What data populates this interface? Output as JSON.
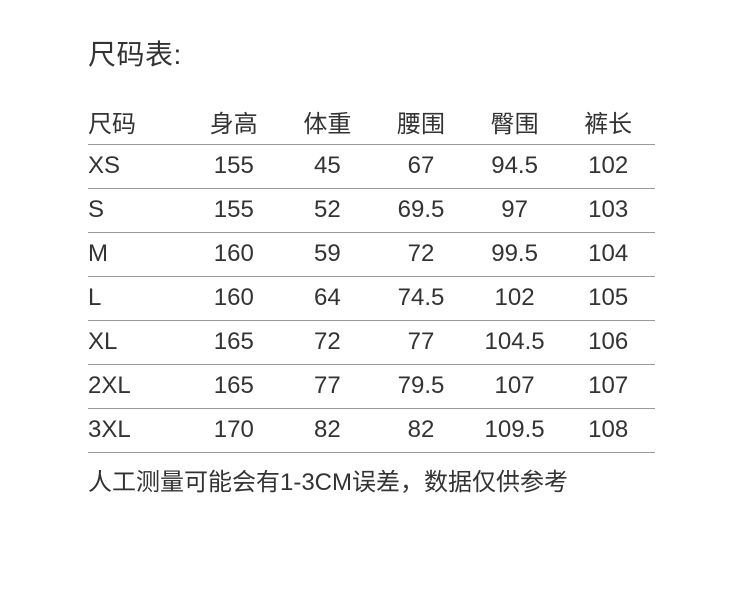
{
  "page": {
    "title": "尺码表:",
    "note": "人工测量可能会有1-3CM误差，数据仅供参考"
  },
  "size_table": {
    "columns": [
      "尺码",
      "身高",
      "体重",
      "腰围",
      "臀围",
      "裤长"
    ],
    "rows": [
      [
        "XS",
        "155",
        "45",
        "67",
        "94.5",
        "102"
      ],
      [
        "S",
        "155",
        "52",
        "69.5",
        "97",
        "103"
      ],
      [
        "M",
        "160",
        "59",
        "72",
        "99.5",
        "104"
      ],
      [
        "L",
        "160",
        "64",
        "74.5",
        "102",
        "105"
      ],
      [
        "XL",
        "165",
        "72",
        "77",
        "104.5",
        "106"
      ],
      [
        "2XL",
        "165",
        "77",
        "79.5",
        "107",
        "107"
      ],
      [
        "3XL",
        "170",
        "82",
        "82",
        "109.5",
        "108"
      ]
    ]
  },
  "colors": {
    "text": "#333333",
    "divider": "#9a9a9a",
    "background": "#ffffff"
  }
}
